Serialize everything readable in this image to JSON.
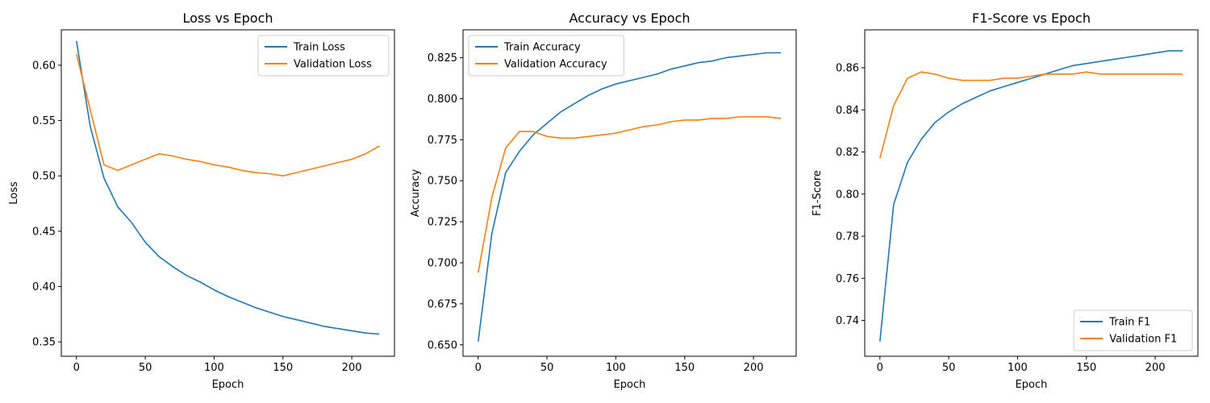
{
  "chart_data": [
    {
      "type": "line",
      "title": "Loss vs Epoch",
      "xlabel": "Epoch",
      "ylabel": "Loss",
      "xlim": [
        -11,
        231
      ],
      "ylim": [
        0.337,
        0.632
      ],
      "xticks": [
        0,
        50,
        100,
        150,
        200
      ],
      "yticks": [
        0.35,
        0.4,
        0.45,
        0.5,
        0.55,
        0.6
      ],
      "ytick_labels": [
        "0.35",
        "0.40",
        "0.45",
        "0.50",
        "0.55",
        "0.60"
      ],
      "grid": false,
      "legend": "top-right",
      "series": [
        {
          "name": "Train Loss",
          "color": "#1f77b4",
          "x": [
            0,
            10,
            20,
            30,
            40,
            50,
            60,
            70,
            80,
            90,
            100,
            110,
            120,
            130,
            140,
            150,
            160,
            170,
            180,
            190,
            200,
            210,
            220
          ],
          "y": [
            0.622,
            0.545,
            0.498,
            0.472,
            0.458,
            0.44,
            0.427,
            0.418,
            0.41,
            0.404,
            0.397,
            0.391,
            0.386,
            0.381,
            0.377,
            0.373,
            0.37,
            0.367,
            0.364,
            0.362,
            0.36,
            0.358,
            0.357
          ]
        },
        {
          "name": "Validation Loss",
          "color": "#ff7f0e",
          "x": [
            0,
            10,
            20,
            30,
            40,
            50,
            60,
            70,
            80,
            90,
            100,
            110,
            120,
            130,
            140,
            150,
            160,
            170,
            180,
            190,
            200,
            210,
            220
          ],
          "y": [
            0.61,
            0.56,
            0.51,
            0.505,
            0.51,
            0.515,
            0.52,
            0.518,
            0.515,
            0.513,
            0.51,
            0.508,
            0.505,
            0.503,
            0.502,
            0.5,
            0.503,
            0.506,
            0.509,
            0.512,
            0.515,
            0.52,
            0.527
          ]
        }
      ]
    },
    {
      "type": "line",
      "title": "Accuracy vs Epoch",
      "xlabel": "Epoch",
      "ylabel": "Accuracy",
      "xlim": [
        -11,
        231
      ],
      "ylim": [
        0.643,
        0.842
      ],
      "xticks": [
        0,
        50,
        100,
        150,
        200
      ],
      "yticks": [
        0.65,
        0.675,
        0.7,
        0.725,
        0.75,
        0.775,
        0.8,
        0.825
      ],
      "ytick_labels": [
        "0.650",
        "0.675",
        "0.700",
        "0.725",
        "0.750",
        "0.775",
        "0.800",
        "0.825"
      ],
      "grid": false,
      "legend": "top-left",
      "series": [
        {
          "name": "Train Accuracy",
          "color": "#1f77b4",
          "x": [
            0,
            10,
            20,
            30,
            40,
            50,
            60,
            70,
            80,
            90,
            100,
            110,
            120,
            130,
            140,
            150,
            160,
            170,
            180,
            190,
            200,
            210,
            220
          ],
          "y": [
            0.652,
            0.718,
            0.755,
            0.768,
            0.778,
            0.785,
            0.792,
            0.797,
            0.802,
            0.806,
            0.809,
            0.811,
            0.813,
            0.815,
            0.818,
            0.82,
            0.822,
            0.823,
            0.825,
            0.826,
            0.827,
            0.828,
            0.828
          ]
        },
        {
          "name": "Validation Accuracy",
          "color": "#ff7f0e",
          "x": [
            0,
            10,
            20,
            30,
            40,
            50,
            60,
            70,
            80,
            90,
            100,
            110,
            120,
            130,
            140,
            150,
            160,
            170,
            180,
            190,
            200,
            210,
            220
          ],
          "y": [
            0.694,
            0.74,
            0.77,
            0.78,
            0.78,
            0.777,
            0.776,
            0.776,
            0.777,
            0.778,
            0.779,
            0.781,
            0.783,
            0.784,
            0.786,
            0.787,
            0.787,
            0.788,
            0.788,
            0.789,
            0.789,
            0.789,
            0.788
          ]
        }
      ]
    },
    {
      "type": "line",
      "title": "F1-Score vs Epoch",
      "xlabel": "Epoch",
      "ylabel": "F1-Score",
      "xlim": [
        -11,
        231
      ],
      "ylim": [
        0.723,
        0.878
      ],
      "xticks": [
        0,
        50,
        100,
        150,
        200
      ],
      "yticks": [
        0.74,
        0.76,
        0.78,
        0.8,
        0.82,
        0.84,
        0.86
      ],
      "ytick_labels": [
        "0.74",
        "0.76",
        "0.78",
        "0.80",
        "0.82",
        "0.84",
        "0.86"
      ],
      "grid": false,
      "legend": "bottom-right",
      "series": [
        {
          "name": "Train F1",
          "color": "#1f77b4",
          "x": [
            0,
            10,
            20,
            30,
            40,
            50,
            60,
            70,
            80,
            90,
            100,
            110,
            120,
            130,
            140,
            150,
            160,
            170,
            180,
            190,
            200,
            210,
            220
          ],
          "y": [
            0.73,
            0.795,
            0.815,
            0.826,
            0.834,
            0.839,
            0.843,
            0.846,
            0.849,
            0.851,
            0.853,
            0.855,
            0.857,
            0.859,
            0.861,
            0.862,
            0.863,
            0.864,
            0.865,
            0.866,
            0.867,
            0.868,
            0.868
          ]
        },
        {
          "name": "Validation F1",
          "color": "#ff7f0e",
          "x": [
            0,
            10,
            20,
            30,
            40,
            50,
            60,
            70,
            80,
            90,
            100,
            110,
            120,
            130,
            140,
            150,
            160,
            170,
            180,
            190,
            200,
            210,
            220
          ],
          "y": [
            0.817,
            0.842,
            0.855,
            0.858,
            0.857,
            0.855,
            0.854,
            0.854,
            0.854,
            0.855,
            0.855,
            0.856,
            0.857,
            0.857,
            0.857,
            0.858,
            0.857,
            0.857,
            0.857,
            0.857,
            0.857,
            0.857,
            0.857
          ]
        }
      ]
    }
  ]
}
